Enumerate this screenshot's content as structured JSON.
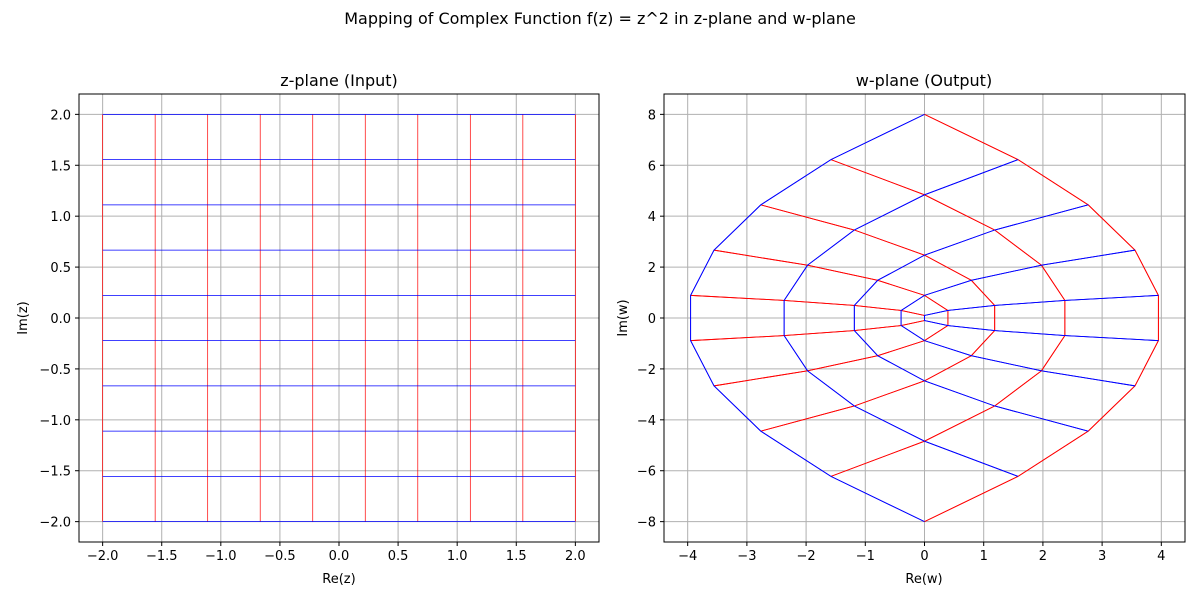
{
  "figure": {
    "suptitle": "Mapping of Complex Function f(z) = z^2 in z-plane and w-plane"
  },
  "colors": {
    "real_lines": "#ff0000",
    "imag_lines": "#0000ff",
    "grid": "#b0b0b0"
  },
  "chart_data": [
    {
      "type": "line",
      "title": "z-plane (Input)",
      "xlabel": "Re(z)",
      "ylabel": "Im(z)",
      "xlim": [
        -2.2,
        2.2
      ],
      "ylim": [
        -2.2,
        2.2
      ],
      "xticks": [
        -2.0,
        -1.5,
        -1.0,
        -0.5,
        0.0,
        0.5,
        1.0,
        1.5,
        2.0
      ],
      "yticks": [
        -2.0,
        -1.5,
        -1.0,
        -0.5,
        0.0,
        0.5,
        1.0,
        1.5,
        2.0
      ],
      "xtick_labels": [
        "−2.0",
        "−1.5",
        "−1.0",
        "−0.5",
        "0.0",
        "0.5",
        "1.0",
        "1.5",
        "2.0"
      ],
      "ytick_labels": [
        "−2.0",
        "−1.5",
        "−1.0",
        "−0.5",
        "0.0",
        "0.5",
        "1.0",
        "1.5",
        "2.0"
      ],
      "grid": true,
      "grid_values": [
        -2.0,
        -1.5556,
        -1.1111,
        -0.6667,
        -0.2222,
        0.2222,
        0.6667,
        1.1111,
        1.5556,
        2.0
      ],
      "vertical_lines_color": "red",
      "horizontal_lines_color": "blue"
    },
    {
      "type": "line",
      "title": "w-plane (Output)",
      "xlabel": "Re(w)",
      "ylabel": "Im(w)",
      "xlim": [
        -4.4,
        4.4
      ],
      "ylim": [
        -8.8,
        8.8
      ],
      "xticks": [
        -4,
        -3,
        -2,
        -1,
        0,
        1,
        2,
        3,
        4
      ],
      "yticks": [
        -8,
        -6,
        -4,
        -2,
        0,
        2,
        4,
        6,
        8
      ],
      "xtick_labels": [
        "−4",
        "−3",
        "−2",
        "−1",
        "0",
        "1",
        "2",
        "3",
        "4"
      ],
      "ytick_labels": [
        "−8",
        "−6",
        "−4",
        "−2",
        "0",
        "2",
        "4",
        "6",
        "8"
      ],
      "grid": true,
      "mapping": "w = z^2",
      "source_grid_values": [
        -2.0,
        -1.5556,
        -1.1111,
        -0.6667,
        -0.2222,
        0.2222,
        0.6667,
        1.1111,
        1.5556,
        2.0
      ],
      "image_of_vertical_lines_color": "red",
      "image_of_horizontal_lines_color": "blue"
    }
  ]
}
